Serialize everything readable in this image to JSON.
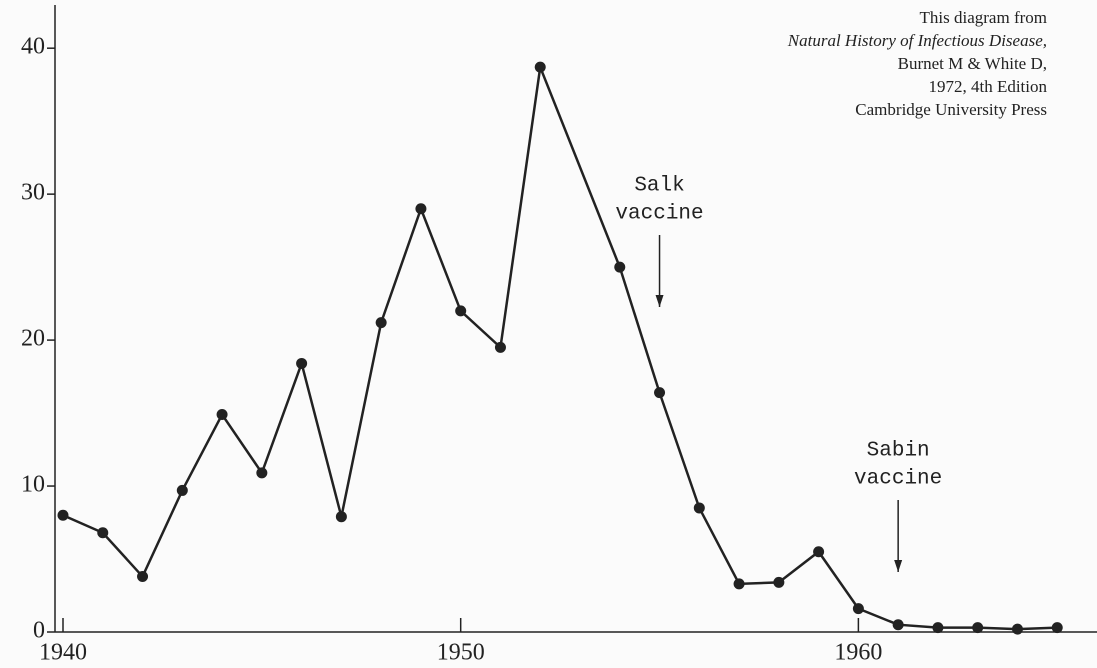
{
  "chart_data": {
    "type": "line",
    "x": [
      1940,
      1941,
      1942,
      1943,
      1944,
      1945,
      1946,
      1947,
      1948,
      1949,
      1950,
      1951,
      1952,
      1954,
      1955,
      1956,
      1957,
      1958,
      1959,
      1960,
      1961,
      1962,
      1963,
      1964,
      1965
    ],
    "values": [
      8,
      6.8,
      3.8,
      9.7,
      14.9,
      10.9,
      18.4,
      7.9,
      21.2,
      29.0,
      22.0,
      19.5,
      38.7,
      25.0,
      16.4,
      8.5,
      3.3,
      3.4,
      5.5,
      1.6,
      0.5,
      0.3,
      0.3,
      0.2,
      0.3
    ],
    "color": "#222222",
    "xlim": [
      1940,
      1966
    ],
    "xticks": [
      1940,
      1950,
      1960
    ],
    "ylim": [
      0,
      42
    ],
    "yticks": [
      0,
      10,
      20,
      30,
      40
    ],
    "annotations": [
      {
        "lines": [
          "Salk",
          "vaccine"
        ],
        "x": 1955
      },
      {
        "lines": [
          "Sabin",
          "vaccine"
        ],
        "x": 1961
      }
    ],
    "source": [
      "This diagram from",
      "Natural History of Infectious Disease,",
      "Burnet M & White D,",
      "1972, 4th Edition",
      "Cambridge University Press"
    ]
  }
}
